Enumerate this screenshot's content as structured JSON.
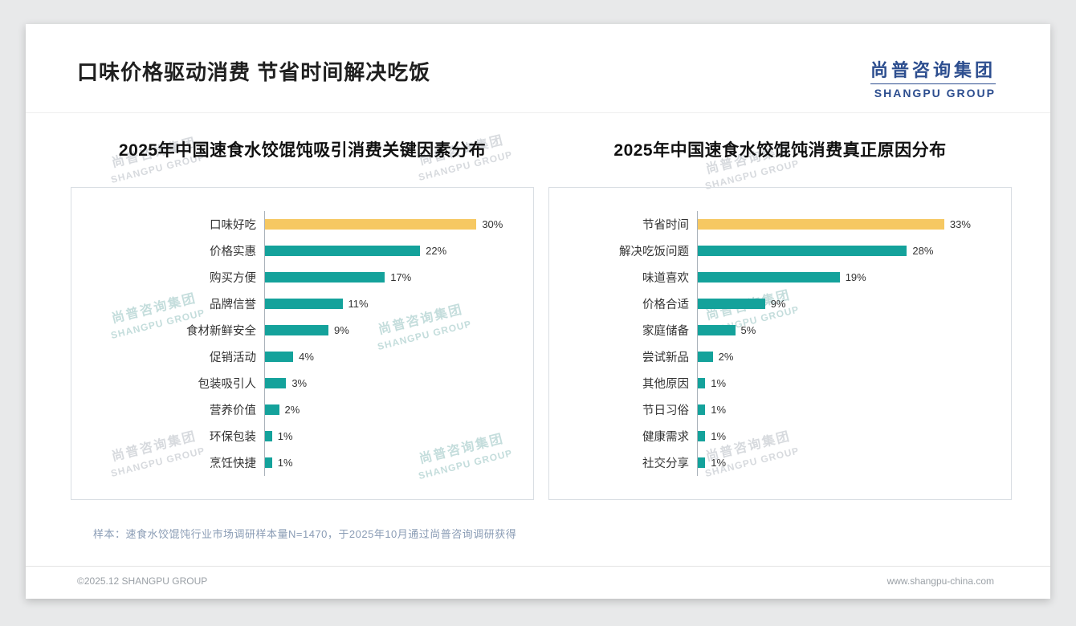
{
  "header": {
    "title": "口味价格驱动消费 节省时间解决吃饭",
    "logo_cn": "尚普咨询集团",
    "logo_en": "SHANGPU GROUP"
  },
  "watermark": {
    "cn": "尚普咨询集团",
    "en": "SHANGPU GROUP"
  },
  "colors": {
    "bar_teal": "#14A29B",
    "bar_gold": "#F6C862",
    "logo_navy": "#2D4E8F"
  },
  "chart_data": [
    {
      "type": "bar",
      "orientation": "horizontal",
      "title": "2025年中国速食水饺馄饨吸引消费关键因素分布",
      "categories": [
        "口味好吃",
        "价格实惠",
        "购买方便",
        "品牌信誉",
        "食材新鲜安全",
        "促销活动",
        "包装吸引人",
        "营养价值",
        "环保包装",
        "烹饪快捷"
      ],
      "values": [
        30,
        22,
        17,
        11,
        9,
        4,
        3,
        2,
        1,
        1
      ],
      "unit": "%",
      "xlim": [
        0,
        36
      ],
      "highlight_first": true,
      "legend": "none",
      "grid": false
    },
    {
      "type": "bar",
      "orientation": "horizontal",
      "title": "2025年中国速食水饺馄饨消费真正原因分布",
      "categories": [
        "节省时间",
        "解决吃饭问题",
        "味道喜欢",
        "价格合适",
        "家庭储备",
        "尝试新品",
        "其他原因",
        "节日习俗",
        "健康需求",
        "社交分享"
      ],
      "values": [
        33,
        28,
        19,
        9,
        5,
        2,
        1,
        1,
        1,
        1
      ],
      "unit": "%",
      "xlim": [
        0,
        40
      ],
      "highlight_first": true,
      "legend": "none",
      "grid": false
    }
  ],
  "footer": {
    "note": "样本：速食水饺馄饨行业市场调研样本量N=1470，于2025年10月通过尚普咨询调研获得",
    "copyright": "©2025.12 SHANGPU GROUP",
    "website": "www.shangpu-china.com"
  }
}
